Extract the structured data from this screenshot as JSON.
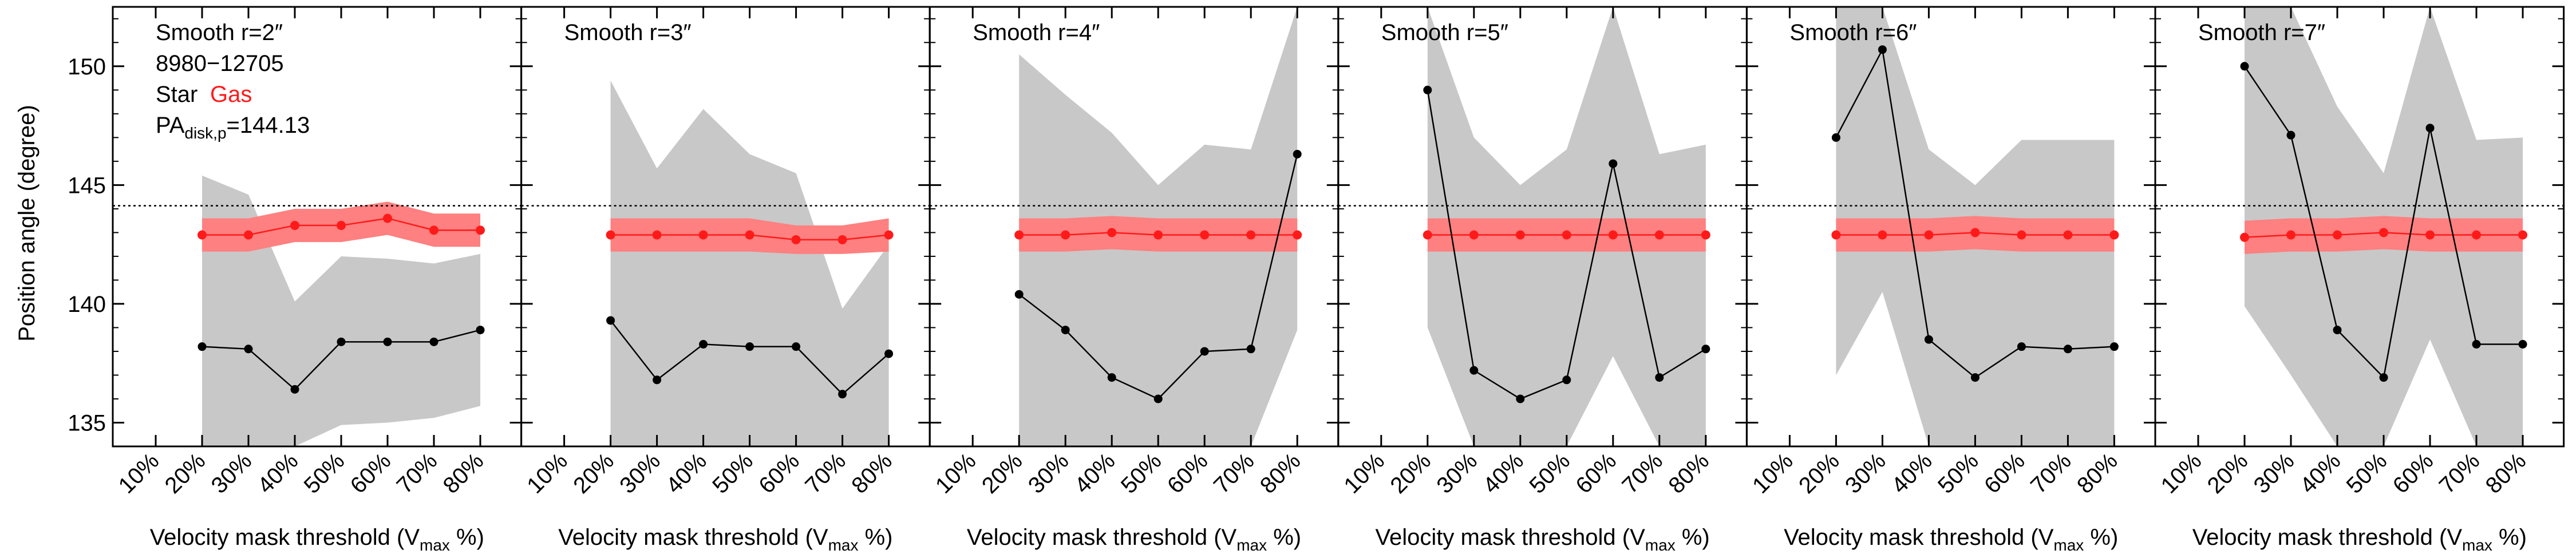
{
  "figure": {
    "ylabel": "Position angle (degree)",
    "xlabel_main": "Velocity mask threshold (V",
    "xlabel_sub": "max",
    "xlabel_tail": " %)"
  },
  "legend": {
    "id": "8980−12705",
    "star": "Star",
    "gas": "Gas",
    "pa_main": "PA",
    "pa_sub": "disk,p",
    "pa_value": "=144.13"
  },
  "colors": {
    "star_line": "#000000",
    "gas_line": "#ff1a1a",
    "gas_band": "#ff8080",
    "star_band": "#c8c8c8",
    "reference_line": "#000000"
  },
  "chart_data": [
    {
      "type": "line",
      "title": "Smooth r=2″",
      "categories": [
        "10%",
        "20%",
        "30%",
        "40%",
        "50%",
        "60%",
        "70%",
        "80%"
      ],
      "ylim": [
        134,
        152.5
      ],
      "yticks": [
        135,
        140,
        145,
        150
      ],
      "reference_line": 144.13,
      "series": [
        {
          "name": "Star",
          "x": [
            "20%",
            "30%",
            "40%",
            "50%",
            "60%",
            "70%",
            "80%"
          ],
          "values": [
            138.2,
            138.1,
            136.4,
            138.4,
            138.4,
            138.4,
            138.9
          ],
          "band_upper": [
            145.4,
            144.6,
            140.1,
            142.0,
            141.9,
            141.7,
            142.1
          ],
          "band_lower": [
            134,
            134,
            134,
            134.9,
            135.0,
            135.2,
            135.7
          ]
        },
        {
          "name": "Gas",
          "x": [
            "20%",
            "30%",
            "40%",
            "50%",
            "60%",
            "70%",
            "80%"
          ],
          "values": [
            142.9,
            142.9,
            143.3,
            143.3,
            143.6,
            143.1,
            143.1
          ],
          "band_upper": [
            143.6,
            143.6,
            144.0,
            144.0,
            144.3,
            143.8,
            143.8
          ],
          "band_lower": [
            142.2,
            142.2,
            142.6,
            142.6,
            142.9,
            142.4,
            142.4
          ]
        }
      ]
    },
    {
      "type": "line",
      "title": "Smooth r=3″",
      "categories": [
        "10%",
        "20%",
        "30%",
        "40%",
        "50%",
        "60%",
        "70%",
        "80%"
      ],
      "ylim": [
        134,
        152.5
      ],
      "yticks": [
        135,
        140,
        145,
        150
      ],
      "reference_line": 144.13,
      "series": [
        {
          "name": "Star",
          "x": [
            "20%",
            "30%",
            "40%",
            "50%",
            "60%",
            "70%",
            "80%"
          ],
          "values": [
            139.3,
            136.8,
            138.3,
            138.2,
            138.2,
            136.2,
            137.9
          ],
          "band_upper": [
            149.4,
            145.7,
            148.2,
            146.3,
            145.5,
            139.8,
            142.5
          ],
          "band_lower": [
            134,
            134,
            134,
            134,
            134,
            134,
            134
          ]
        },
        {
          "name": "Gas",
          "x": [
            "20%",
            "30%",
            "40%",
            "50%",
            "60%",
            "70%",
            "80%"
          ],
          "values": [
            142.9,
            142.9,
            142.9,
            142.9,
            142.7,
            142.7,
            142.9
          ],
          "band_upper": [
            143.6,
            143.6,
            143.6,
            143.6,
            143.3,
            143.3,
            143.6
          ],
          "band_lower": [
            142.2,
            142.2,
            142.2,
            142.2,
            142.1,
            142.1,
            142.2
          ]
        }
      ]
    },
    {
      "type": "line",
      "title": "Smooth r=4″",
      "categories": [
        "10%",
        "20%",
        "30%",
        "40%",
        "50%",
        "60%",
        "70%",
        "80%"
      ],
      "ylim": [
        134,
        152.5
      ],
      "yticks": [
        135,
        140,
        145,
        150
      ],
      "reference_line": 144.13,
      "series": [
        {
          "name": "Star",
          "x": [
            "20%",
            "30%",
            "40%",
            "50%",
            "60%",
            "70%",
            "80%"
          ],
          "values": [
            140.4,
            138.9,
            136.9,
            136.0,
            138.0,
            138.1,
            146.3
          ],
          "band_upper": [
            150.5,
            148.8,
            147.2,
            145.0,
            146.7,
            146.5,
            152.5
          ],
          "band_lower": [
            134,
            134,
            134,
            134,
            134,
            134,
            138.9
          ]
        },
        {
          "name": "Gas",
          "x": [
            "20%",
            "30%",
            "40%",
            "50%",
            "60%",
            "70%",
            "80%"
          ],
          "values": [
            142.9,
            142.9,
            143.0,
            142.9,
            142.9,
            142.9,
            142.9
          ],
          "band_upper": [
            143.6,
            143.6,
            143.7,
            143.6,
            143.6,
            143.6,
            143.6
          ],
          "band_lower": [
            142.2,
            142.2,
            142.3,
            142.2,
            142.2,
            142.2,
            142.2
          ]
        }
      ]
    },
    {
      "type": "line",
      "title": "Smooth r=5″",
      "categories": [
        "10%",
        "20%",
        "30%",
        "40%",
        "50%",
        "60%",
        "70%",
        "80%"
      ],
      "ylim": [
        134,
        152.5
      ],
      "yticks": [
        135,
        140,
        145,
        150
      ],
      "reference_line": 144.13,
      "series": [
        {
          "name": "Star",
          "x": [
            "20%",
            "30%",
            "40%",
            "50%",
            "60%",
            "70%",
            "80%"
          ],
          "values": [
            149.0,
            137.2,
            136.0,
            136.8,
            145.9,
            136.9,
            138.1
          ],
          "band_upper": [
            152.5,
            147.0,
            145.0,
            146.5,
            152.5,
            146.3,
            146.7
          ],
          "band_lower": [
            139.0,
            134,
            134,
            134,
            137.8,
            134,
            134
          ]
        },
        {
          "name": "Gas",
          "x": [
            "20%",
            "30%",
            "40%",
            "50%",
            "60%",
            "70%",
            "80%"
          ],
          "values": [
            142.9,
            142.9,
            142.9,
            142.9,
            142.9,
            142.9,
            142.9
          ],
          "band_upper": [
            143.6,
            143.6,
            143.6,
            143.6,
            143.6,
            143.6,
            143.6
          ],
          "band_lower": [
            142.2,
            142.2,
            142.2,
            142.2,
            142.2,
            142.2,
            142.2
          ]
        }
      ]
    },
    {
      "type": "line",
      "title": "Smooth r=6″",
      "categories": [
        "10%",
        "20%",
        "30%",
        "40%",
        "50%",
        "60%",
        "70%",
        "80%"
      ],
      "ylim": [
        134,
        152.5
      ],
      "yticks": [
        135,
        140,
        145,
        150
      ],
      "reference_line": 144.13,
      "series": [
        {
          "name": "Star",
          "x": [
            "20%",
            "30%",
            "40%",
            "50%",
            "60%",
            "70%",
            "80%"
          ],
          "values": [
            147.0,
            150.7,
            138.5,
            136.9,
            138.2,
            138.1,
            138.2
          ],
          "band_upper": [
            152.5,
            152.5,
            146.5,
            145.0,
            146.9,
            146.9,
            146.9
          ],
          "band_lower": [
            137.0,
            140.5,
            134,
            134,
            134,
            134,
            134
          ]
        },
        {
          "name": "Gas",
          "x": [
            "20%",
            "30%",
            "40%",
            "50%",
            "60%",
            "70%",
            "80%"
          ],
          "values": [
            142.9,
            142.9,
            142.9,
            143.0,
            142.9,
            142.9,
            142.9
          ],
          "band_upper": [
            143.6,
            143.6,
            143.6,
            143.7,
            143.6,
            143.6,
            143.6
          ],
          "band_lower": [
            142.2,
            142.2,
            142.2,
            142.3,
            142.2,
            142.2,
            142.2
          ]
        }
      ]
    },
    {
      "type": "line",
      "title": "Smooth r=7″",
      "categories": [
        "10%",
        "20%",
        "30%",
        "40%",
        "50%",
        "60%",
        "70%",
        "80%"
      ],
      "ylim": [
        134,
        152.5
      ],
      "yticks": [
        135,
        140,
        145,
        150
      ],
      "reference_line": 144.13,
      "series": [
        {
          "name": "Star",
          "x": [
            "20%",
            "30%",
            "40%",
            "50%",
            "60%",
            "70%",
            "80%"
          ],
          "values": [
            150.0,
            147.1,
            138.9,
            136.9,
            147.4,
            138.3,
            138.3
          ],
          "band_upper": [
            152.5,
            152.5,
            148.3,
            145.5,
            152.5,
            146.9,
            147.0
          ],
          "band_lower": [
            139.9,
            137.0,
            134,
            134,
            138.5,
            134,
            134
          ]
        },
        {
          "name": "Gas",
          "x": [
            "20%",
            "30%",
            "40%",
            "50%",
            "60%",
            "70%",
            "80%"
          ],
          "values": [
            142.8,
            142.9,
            142.9,
            143.0,
            142.9,
            142.9,
            142.9
          ],
          "band_upper": [
            143.5,
            143.6,
            143.6,
            143.7,
            143.6,
            143.6,
            143.6
          ],
          "band_lower": [
            142.1,
            142.2,
            142.2,
            142.3,
            142.2,
            142.2,
            142.2
          ]
        }
      ]
    }
  ]
}
